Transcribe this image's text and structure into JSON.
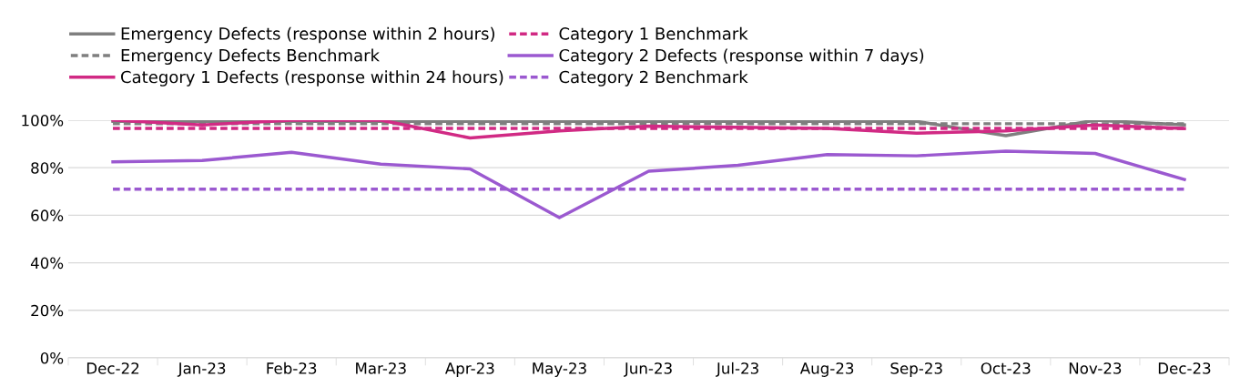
{
  "chart_data": {
    "type": "line",
    "categories": [
      "Dec-22",
      "Jan-23",
      "Feb-23",
      "Mar-23",
      "Apr-23",
      "May-23",
      "Jun-23",
      "Jul-23",
      "Aug-23",
      "Sep-23",
      "Oct-23",
      "Nov-23",
      "Dec-23"
    ],
    "series": [
      {
        "name": "Emergency Defects (response within 2 hours)",
        "color": "#7f7f7f",
        "line_style": "solid",
        "values": [
          99.5,
          99.5,
          99.5,
          99.5,
          99.5,
          99.5,
          99.5,
          99.5,
          99.5,
          99.5,
          93.5,
          100,
          98
        ]
      },
      {
        "name": "Emergency Defects Benchmark",
        "color": "#7f7f7f",
        "line_style": "dashed",
        "values": [
          98.5,
          98.5,
          98.5,
          98.5,
          98.5,
          98.5,
          98.5,
          98.5,
          98.5,
          98.5,
          98.5,
          98.5,
          98.5
        ]
      },
      {
        "name": "Category 1 Defects (response within 24 hours)",
        "color": "#d12a84",
        "line_style": "solid",
        "values": [
          100,
          98,
          100,
          100,
          92.5,
          95.5,
          97.5,
          97,
          96.5,
          94.5,
          95.5,
          98,
          96.5
        ]
      },
      {
        "name": "Category 1 Benchmark",
        "color": "#d12a84",
        "line_style": "dashed",
        "values": [
          96.5,
          96.5,
          96.5,
          96.5,
          96.5,
          96.5,
          96.5,
          96.5,
          96.5,
          96.5,
          96.5,
          96.5,
          96.5
        ]
      },
      {
        "name": "Category 2 Defects (response within 7 days)",
        "color": "#9b59d0",
        "line_style": "solid",
        "values": [
          82.5,
          83,
          86.5,
          81.5,
          79.5,
          59,
          78.5,
          81,
          85.5,
          85,
          87,
          86,
          75
        ]
      },
      {
        "name": "Category 2 Benchmark",
        "color": "#9b59d0",
        "line_style": "dashed",
        "values": [
          71,
          71,
          71,
          71,
          71,
          71,
          71,
          71,
          71,
          71,
          71,
          71,
          71
        ]
      }
    ],
    "ylim": [
      0,
      100
    ],
    "yticks": [
      {
        "value": 0,
        "label": "0%"
      },
      {
        "value": 20,
        "label": "20%"
      },
      {
        "value": 40,
        "label": "40%"
      },
      {
        "value": 60,
        "label": "60%"
      },
      {
        "value": 80,
        "label": "80%"
      },
      {
        "value": 100,
        "label": "100%"
      }
    ],
    "grid": "y",
    "legend": "top",
    "marker": "none"
  }
}
